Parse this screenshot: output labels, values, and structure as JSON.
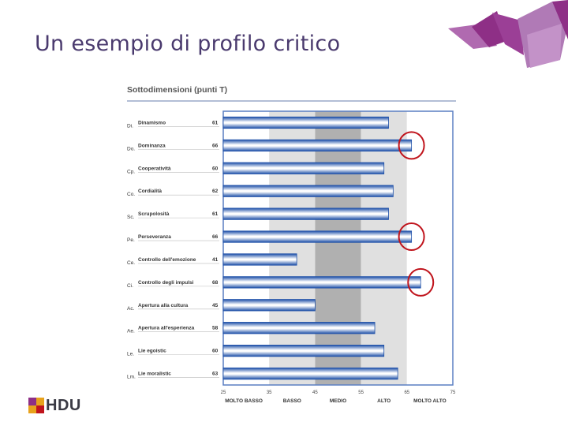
{
  "slide": {
    "title": "Un esempio di profilo critico"
  },
  "brand": {
    "logo_text": "HDU",
    "accent": "#8e2f86",
    "accent_light": "#b06ab0"
  },
  "chart_data": {
    "type": "bar",
    "orientation": "horizontal",
    "title": "Sottodimensioni (punti T)",
    "codes": [
      "Di.",
      "Do.",
      "Cp.",
      "Co.",
      "Sc.",
      "Pe.",
      "Ce.",
      "Ci.",
      "Ac.",
      "Ae.",
      "Le.",
      "Lm."
    ],
    "categories": [
      "Dinamismo",
      "Dominanza",
      "Cooperatività",
      "Cordialità",
      "Scrupolosità",
      "Perseveranza",
      "Controllo dell'emozione",
      "Controllo degli impulsi",
      "Apertura alla cultura",
      "Apertura all'esperienza",
      "Lie egoistic",
      "Lie moralistic"
    ],
    "values": [
      61,
      66,
      60,
      62,
      61,
      66,
      41,
      68,
      45,
      58,
      60,
      63
    ],
    "value_labels": [
      "61",
      "66",
      "60",
      "62",
      "61",
      "66",
      "41",
      "68",
      "45",
      "58",
      "60",
      "63"
    ],
    "xlim": [
      25,
      75
    ],
    "ticks": [
      "25",
      "35",
      "45",
      "55",
      "65",
      "75"
    ],
    "bands": [
      {
        "label": "MOLTO BASSO",
        "from": 25,
        "to": 35,
        "color": "#ffffff"
      },
      {
        "label": "BASSO",
        "from": 35,
        "to": 45,
        "color": "#e0e0e0"
      },
      {
        "label": "MEDIO",
        "from": 45,
        "to": 55,
        "color": "#b0b0b0"
      },
      {
        "label": "ALTO",
        "from": 55,
        "to": 65,
        "color": "#e0e0e0"
      },
      {
        "label": "MOLTO ALTO",
        "from": 65,
        "to": 75,
        "color": "#ffffff"
      }
    ],
    "highlighted": [
      "Dominanza",
      "Perseveranza",
      "Controllo degli impulsi"
    ],
    "bar_color": "#2e6fc9",
    "highlight_color": "#c0141c"
  }
}
